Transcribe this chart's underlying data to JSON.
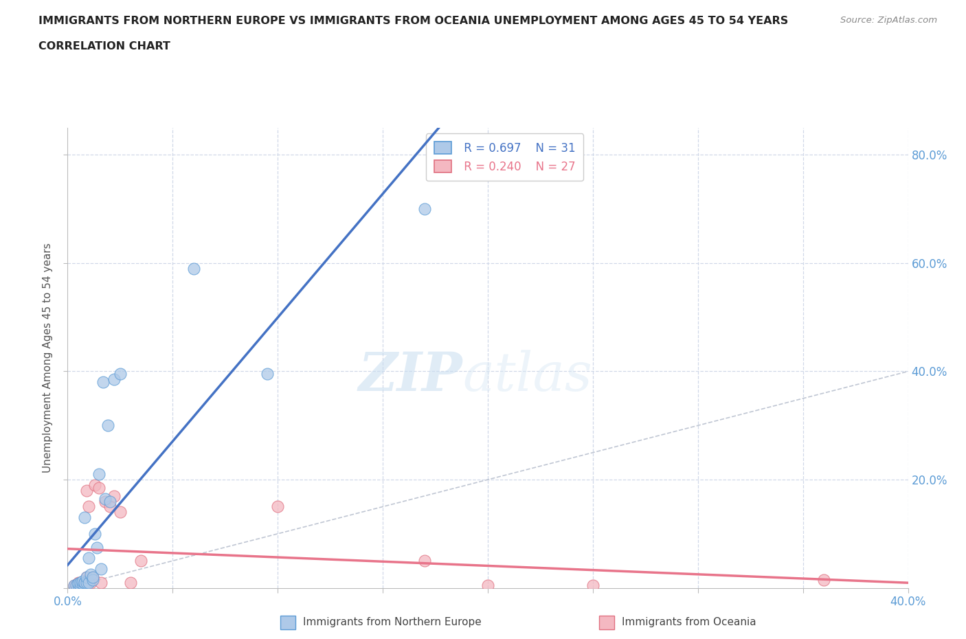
{
  "title_line1": "IMMIGRANTS FROM NORTHERN EUROPE VS IMMIGRANTS FROM OCEANIA UNEMPLOYMENT AMONG AGES 45 TO 54 YEARS",
  "title_line2": "CORRELATION CHART",
  "source_text": "Source: ZipAtlas.com",
  "ylabel": "Unemployment Among Ages 45 to 54 years",
  "xlim": [
    0.0,
    0.4
  ],
  "ylim": [
    0.0,
    0.85
  ],
  "watermark_zip": "ZIP",
  "watermark_atlas": "atlas",
  "legend_r1": "R = 0.697",
  "legend_n1": "N = 31",
  "legend_r2": "R = 0.240",
  "legend_n2": "N = 27",
  "color_northern_fill": "#aec9e8",
  "color_northern_edge": "#5b9bd5",
  "color_oceania_fill": "#f4b8c1",
  "color_oceania_edge": "#e07080",
  "color_line_northern": "#4472c4",
  "color_line_oceania": "#e8748a",
  "color_diagonal": "#b0b8c8",
  "bg_color": "#ffffff",
  "grid_color": "#d0d8e8",
  "title_color": "#222222",
  "axis_label_color": "#555555",
  "right_tick_color": "#5b9bd5",
  "northern_x": [
    0.003,
    0.004,
    0.005,
    0.005,
    0.006,
    0.006,
    0.007,
    0.007,
    0.008,
    0.008,
    0.008,
    0.009,
    0.009,
    0.01,
    0.01,
    0.011,
    0.012,
    0.012,
    0.013,
    0.014,
    0.015,
    0.016,
    0.017,
    0.018,
    0.019,
    0.02,
    0.022,
    0.025,
    0.06,
    0.095,
    0.17
  ],
  "northern_y": [
    0.005,
    0.005,
    0.005,
    0.008,
    0.005,
    0.01,
    0.008,
    0.012,
    0.01,
    0.01,
    0.13,
    0.01,
    0.02,
    0.01,
    0.055,
    0.025,
    0.015,
    0.02,
    0.1,
    0.075,
    0.21,
    0.035,
    0.38,
    0.165,
    0.3,
    0.16,
    0.385,
    0.395,
    0.59,
    0.395,
    0.7
  ],
  "oceania_x": [
    0.003,
    0.004,
    0.005,
    0.006,
    0.006,
    0.007,
    0.008,
    0.009,
    0.009,
    0.01,
    0.01,
    0.011,
    0.012,
    0.013,
    0.015,
    0.016,
    0.018,
    0.02,
    0.022,
    0.025,
    0.03,
    0.035,
    0.1,
    0.17,
    0.2,
    0.25,
    0.36
  ],
  "oceania_y": [
    0.005,
    0.005,
    0.01,
    0.005,
    0.01,
    0.005,
    0.01,
    0.02,
    0.18,
    0.015,
    0.15,
    0.01,
    0.02,
    0.19,
    0.185,
    0.01,
    0.16,
    0.15,
    0.17,
    0.14,
    0.01,
    0.05,
    0.15,
    0.05,
    0.005,
    0.005,
    0.015
  ],
  "bottom_legend_label1": "Immigrants from Northern Europe",
  "bottom_legend_label2": "Immigrants from Oceania"
}
